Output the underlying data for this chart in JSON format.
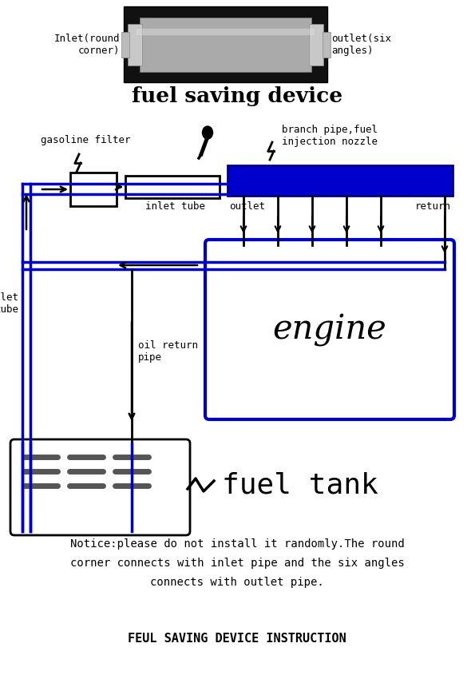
{
  "title_top": "fuel saving device",
  "label_inlet": "Inlet(round\ncorner)",
  "label_outlet": "outlet(six\nangles)",
  "label_gasoline_filter": "gasoline filter",
  "label_branch_pipe": "branch pipe,fuel\ninjection nozzle",
  "label_inlet_tube": "inlet tube",
  "label_outlet_label": "outlet",
  "label_return": "return",
  "label_outlet_tube": "outlet\ntube",
  "label_oil_return": "oil return\npipe",
  "label_engine": "engine",
  "label_fuel_tank": "fuel tank",
  "notice_text": "Notice:please do not install it randomly.The round\ncorner connects with inlet pipe and the six angles\nconnects with outlet pipe.",
  "footer_text": "FEUL SAVING DEVICE INSTRUCTION",
  "bg_color": "#ffffff",
  "blue_color": "#0000cc",
  "dark_blue": "#000080",
  "black": "#000000"
}
